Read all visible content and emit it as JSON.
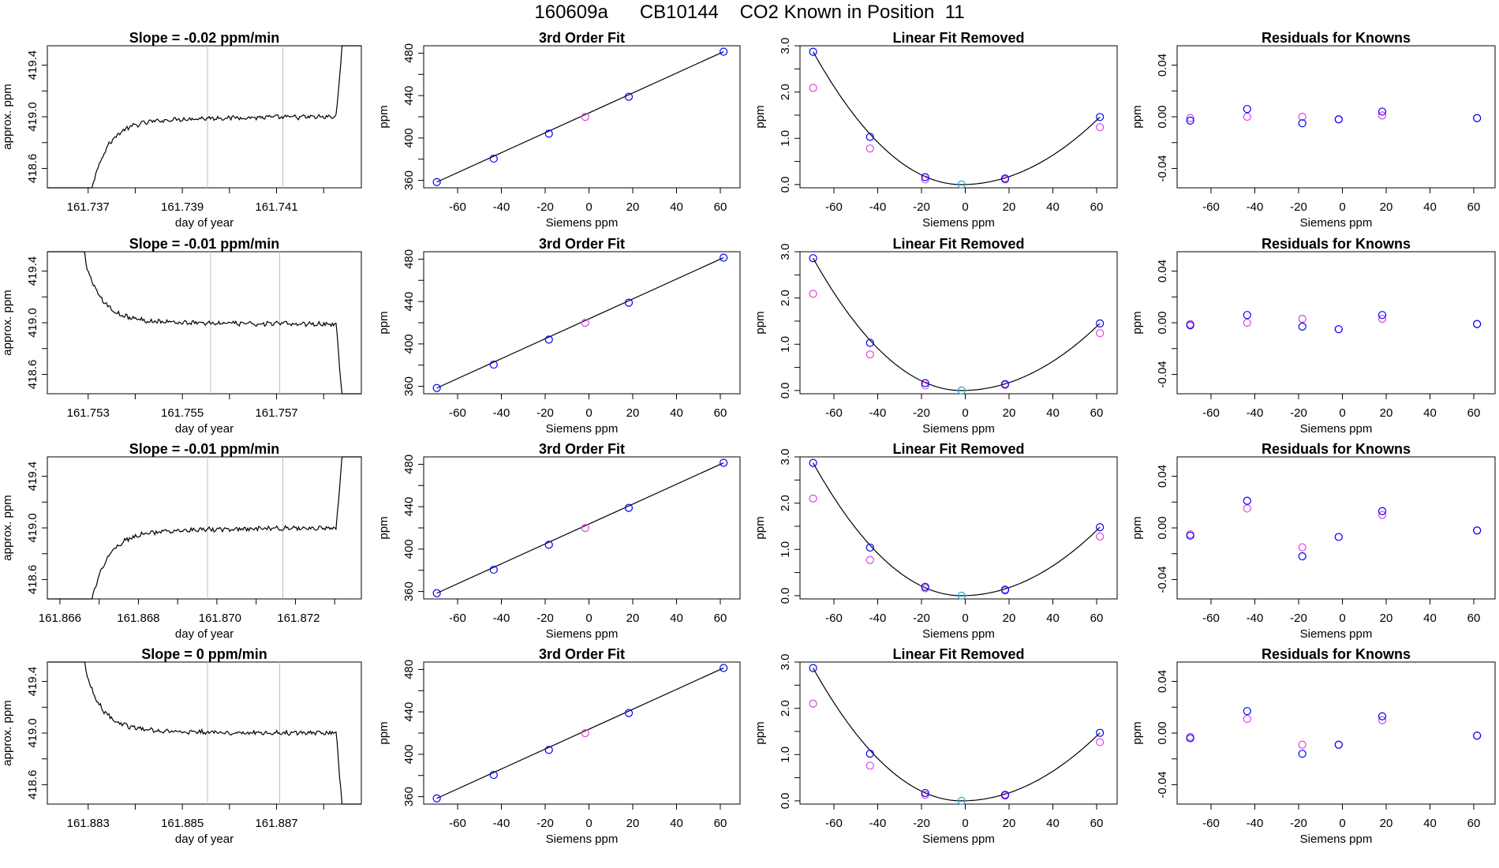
{
  "page_title": "160609a      CB10144    CO2 Known in Position  11",
  "colors": {
    "trace": "#000000",
    "vline": "#bebebe",
    "blue": "#0000ff",
    "magenta": "#dd44dd",
    "cyan": "#22aadd",
    "fit_line": "#000000"
  },
  "chart_data": [
    {
      "type": "line",
      "row": 0,
      "col": 0,
      "title": "Slope =  -0.02  ppm/min",
      "xlabel": "day of year",
      "ylabel": "approx. ppm",
      "xticks": [
        "161.737",
        "161.739",
        "161.741"
      ],
      "yticks": [
        "418.6",
        "419.0",
        "419.4"
      ],
      "shape": "rise",
      "plateau": 419.0,
      "vlines": [
        0.51,
        0.75
      ]
    },
    {
      "type": "line",
      "row": 0,
      "col": 1,
      "title": "3rd Order Fit",
      "xlabel": "Siemens ppm",
      "ylabel": "ppm",
      "xticks": [
        "-60",
        "-40",
        "-20",
        "0",
        "20",
        "40",
        "60"
      ],
      "yticks": [
        "360",
        "400",
        "440",
        "480"
      ],
      "x": [
        -69.5,
        -43.5,
        -18.3,
        -1.7,
        18.2,
        61.5
      ],
      "y": [
        358.4,
        380.5,
        404.1,
        419.9,
        438.9,
        481.4
      ]
    },
    {
      "type": "scatter",
      "row": 0,
      "col": 2,
      "title": "Linear Fit Removed",
      "xlabel": "Siemens ppm",
      "ylabel": "ppm",
      "xticks": [
        "-60",
        "-40",
        "-20",
        "0",
        "20",
        "40",
        "60"
      ],
      "yticks": [
        "0.0",
        "1.0",
        "2.0",
        "3.0"
      ],
      "x": [
        -69.5,
        -43.5,
        -18.3,
        -1.7,
        18.2,
        61.5
      ],
      "y_blue": [
        2.87,
        1.03,
        0.16,
        0.0,
        0.13,
        1.46
      ],
      "y_magenta": [
        2.09,
        0.78,
        0.11,
        0.0,
        0.11,
        1.24
      ]
    },
    {
      "type": "scatter",
      "row": 0,
      "col": 3,
      "title": "Residuals for Knowns",
      "xlabel": "Siemens ppm",
      "ylabel": "ppm",
      "xticks": [
        "-60",
        "-40",
        "-20",
        "0",
        "20",
        "40",
        "60"
      ],
      "yticks": [
        "-0.04",
        "0.00",
        "0.04"
      ],
      "x": [
        -69.5,
        -43.5,
        -18.3,
        -1.7,
        18.2,
        61.5
      ],
      "y_blue": [
        -0.003,
        0.006,
        -0.005,
        -0.002,
        0.004,
        -0.001
      ],
      "y_magenta": [
        -0.001,
        0.0,
        0.0,
        -0.002,
        0.001,
        -0.001
      ]
    },
    {
      "type": "line",
      "row": 1,
      "col": 0,
      "title": "Slope =  -0.01  ppm/min",
      "xlabel": "day of year",
      "ylabel": "approx. ppm",
      "xticks": [
        "161.753",
        "161.755",
        "161.757"
      ],
      "yticks": [
        "418.6",
        "419.0",
        "419.4"
      ],
      "shape": "fall",
      "plateau": 418.99,
      "vlines": [
        0.52,
        0.74
      ]
    },
    {
      "type": "line",
      "row": 1,
      "col": 1,
      "title": "3rd Order Fit",
      "xlabel": "Siemens ppm",
      "ylabel": "ppm",
      "xticks": [
        "-60",
        "-40",
        "-20",
        "0",
        "20",
        "40",
        "60"
      ],
      "yticks": [
        "360",
        "400",
        "440",
        "480"
      ],
      "x": [
        -69.5,
        -43.5,
        -18.3,
        -1.7,
        18.2,
        61.5
      ],
      "y": [
        358.4,
        380.5,
        404.1,
        419.9,
        438.9,
        481.4
      ]
    },
    {
      "type": "scatter",
      "row": 1,
      "col": 2,
      "title": "Linear Fit Removed",
      "xlabel": "Siemens ppm",
      "ylabel": "ppm",
      "xticks": [
        "-60",
        "-40",
        "-20",
        "0",
        "20",
        "40",
        "60"
      ],
      "yticks": [
        "0.0",
        "1.0",
        "2.0",
        "3.0"
      ],
      "x": [
        -69.5,
        -43.5,
        -18.3,
        -1.7,
        18.2,
        61.5
      ],
      "y_blue": [
        2.86,
        1.03,
        0.16,
        0.0,
        0.14,
        1.45
      ],
      "y_magenta": [
        2.09,
        0.78,
        0.11,
        0.0,
        0.12,
        1.24
      ]
    },
    {
      "type": "scatter",
      "row": 1,
      "col": 3,
      "title": "Residuals for Knowns",
      "xlabel": "Siemens ppm",
      "ylabel": "ppm",
      "xticks": [
        "-60",
        "-40",
        "-20",
        "0",
        "20",
        "40",
        "60"
      ],
      "yticks": [
        "-0.04",
        "0.00",
        "0.04"
      ],
      "x": [
        -69.5,
        -43.5,
        -18.3,
        -1.7,
        18.2,
        61.5
      ],
      "y_blue": [
        -0.002,
        0.006,
        -0.003,
        -0.005,
        0.006,
        -0.001
      ],
      "y_magenta": [
        -0.001,
        0.0,
        0.003,
        -0.005,
        0.003,
        -0.001
      ]
    },
    {
      "type": "line",
      "row": 2,
      "col": 0,
      "title": "Slope =  -0.01  ppm/min",
      "xlabel": "day of year",
      "ylabel": "approx. ppm",
      "xticks": [
        "161.866",
        "161.868",
        "161.870",
        "161.872"
      ],
      "yticks": [
        "418.6",
        "419.0",
        "419.4"
      ],
      "shape": "rise",
      "plateau": 419.0,
      "vlines": [
        0.51,
        0.75
      ]
    },
    {
      "type": "line",
      "row": 2,
      "col": 1,
      "title": "3rd Order Fit",
      "xlabel": "Siemens ppm",
      "ylabel": "ppm",
      "xticks": [
        "-60",
        "-40",
        "-20",
        "0",
        "20",
        "40",
        "60"
      ],
      "yticks": [
        "360",
        "400",
        "440",
        "480"
      ],
      "x": [
        -69.5,
        -43.5,
        -18.3,
        -1.7,
        18.2,
        61.5
      ],
      "y": [
        358.4,
        380.5,
        404.1,
        419.9,
        438.9,
        481.4
      ]
    },
    {
      "type": "scatter",
      "row": 2,
      "col": 2,
      "title": "Linear Fit Removed",
      "xlabel": "Siemens ppm",
      "ylabel": "ppm",
      "xticks": [
        "-60",
        "-40",
        "-20",
        "0",
        "20",
        "40",
        "60"
      ],
      "yticks": [
        "0.0",
        "1.0",
        "2.0",
        "3.0"
      ],
      "x": [
        -69.5,
        -43.5,
        -18.3,
        -1.7,
        18.2,
        61.5
      ],
      "y_blue": [
        2.87,
        1.04,
        0.19,
        0.0,
        0.13,
        1.48
      ],
      "y_magenta": [
        2.1,
        0.77,
        0.16,
        0.0,
        0.11,
        1.28
      ]
    },
    {
      "type": "scatter",
      "row": 2,
      "col": 3,
      "title": "Residuals for Knowns",
      "xlabel": "Siemens ppm",
      "ylabel": "ppm",
      "xticks": [
        "-60",
        "-40",
        "-20",
        "0",
        "20",
        "40",
        "60"
      ],
      "yticks": [
        "-0.04",
        "0.00",
        "0.04"
      ],
      "x": [
        -69.5,
        -43.5,
        -18.3,
        -1.7,
        18.2,
        61.5
      ],
      "y_blue": [
        -0.006,
        0.021,
        -0.022,
        -0.007,
        0.013,
        -0.002
      ],
      "y_magenta": [
        -0.005,
        0.015,
        -0.015,
        -0.007,
        0.01,
        -0.002
      ]
    },
    {
      "type": "line",
      "row": 3,
      "col": 0,
      "title": "Slope =  0  ppm/min",
      "xlabel": "day of year",
      "ylabel": "approx. ppm",
      "xticks": [
        "161.883",
        "161.885",
        "161.887"
      ],
      "yticks": [
        "418.6",
        "419.0",
        "419.4"
      ],
      "shape": "fall",
      "plateau": 419.0,
      "vlines": [
        0.51,
        0.74
      ]
    },
    {
      "type": "line",
      "row": 3,
      "col": 1,
      "title": "3rd Order Fit",
      "xlabel": "Siemens ppm",
      "ylabel": "ppm",
      "xticks": [
        "-60",
        "-40",
        "-20",
        "0",
        "20",
        "40",
        "60"
      ],
      "yticks": [
        "360",
        "400",
        "440",
        "480"
      ],
      "x": [
        -69.5,
        -43.5,
        -18.3,
        -1.7,
        18.2,
        61.5
      ],
      "y": [
        358.4,
        380.5,
        404.1,
        419.9,
        438.9,
        481.4
      ]
    },
    {
      "type": "scatter",
      "row": 3,
      "col": 2,
      "title": "Linear Fit Removed",
      "xlabel": "Siemens ppm",
      "ylabel": "ppm",
      "xticks": [
        "-60",
        "-40",
        "-20",
        "0",
        "20",
        "40",
        "60"
      ],
      "yticks": [
        "0.0",
        "1.0",
        "2.0",
        "3.0"
      ],
      "x": [
        -69.5,
        -43.5,
        -18.3,
        -1.7,
        18.2,
        61.5
      ],
      "y_blue": [
        2.87,
        1.02,
        0.17,
        0.0,
        0.13,
        1.47
      ],
      "y_magenta": [
        2.1,
        0.76,
        0.13,
        0.0,
        0.11,
        1.27
      ]
    },
    {
      "type": "scatter",
      "row": 3,
      "col": 3,
      "title": "Residuals for Knowns",
      "xlabel": "Siemens ppm",
      "ylabel": "ppm",
      "xticks": [
        "-60",
        "-40",
        "-20",
        "0",
        "20",
        "40",
        "60"
      ],
      "yticks": [
        "-0.04",
        "0.00",
        "0.04"
      ],
      "x": [
        -69.5,
        -43.5,
        -18.3,
        -1.7,
        18.2,
        61.5
      ],
      "y_blue": [
        -0.004,
        0.017,
        -0.016,
        -0.009,
        0.013,
        -0.002
      ],
      "y_magenta": [
        -0.003,
        0.011,
        -0.009,
        -0.009,
        0.01,
        -0.002
      ]
    }
  ]
}
